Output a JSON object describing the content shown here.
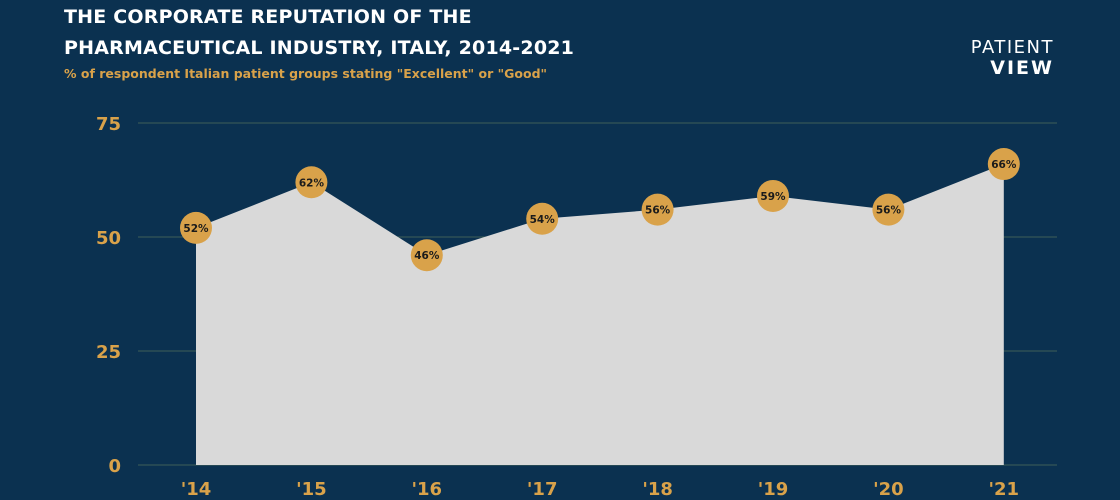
{
  "header": {
    "title_line1": "THE CORPORATE REPUTATION OF THE",
    "title_line2": "PHARMACEUTICAL INDUSTRY, ITALY, 2014-2021",
    "subtitle": "% of respondent Italian patient groups stating \"Excellent\" or \"Good\""
  },
  "logo": {
    "line1": "PATIENT",
    "line2": "VIEW"
  },
  "colors": {
    "background": "#0b3150",
    "accent": "#d9a24a",
    "area_fill": "#d9d9d9",
    "marker": "#d9a24a"
  },
  "chart_data": {
    "type": "area",
    "title": "THE CORPORATE REPUTATION OF THE PHARMACEUTICAL INDUSTRY, ITALY, 2014-2021",
    "subtitle": "% of respondent Italian patient groups stating \"Excellent\" or \"Good\"",
    "categories": [
      "'14",
      "'15",
      "'16",
      "'17",
      "'18",
      "'19",
      "'20",
      "'21"
    ],
    "values": [
      52,
      62,
      46,
      54,
      56,
      59,
      56,
      66
    ],
    "data_labels": [
      "52%",
      "62%",
      "46%",
      "54%",
      "56%",
      "59%",
      "56%",
      "66%"
    ],
    "ylim": [
      0,
      75
    ],
    "yticks": [
      0,
      25,
      50,
      75
    ],
    "grid": true,
    "xlabel": "",
    "ylabel": ""
  }
}
